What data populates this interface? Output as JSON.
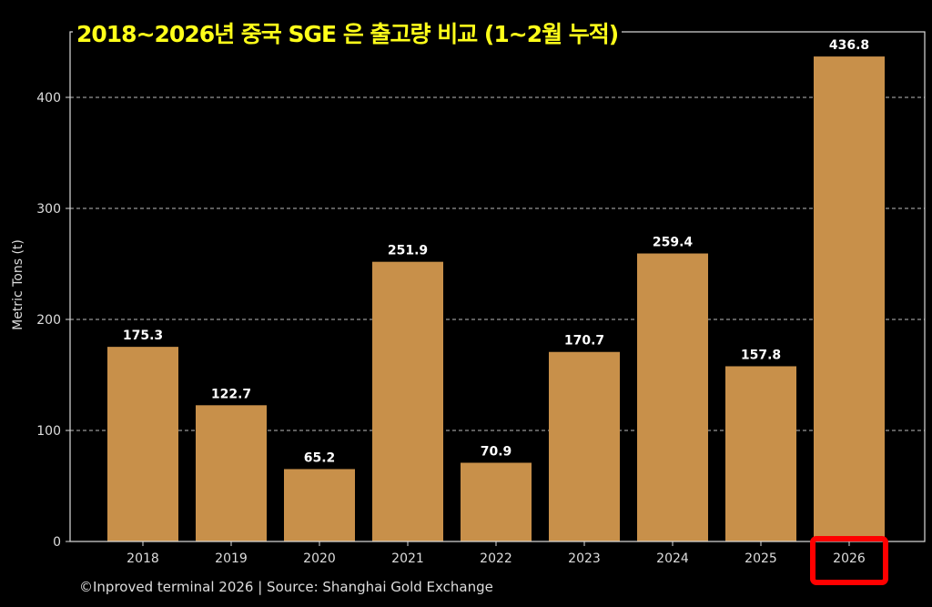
{
  "chart_data": {
    "type": "bar",
    "title": "2018~2026년 중국 SGE 은 출고량 비교 (1~2월 누적)",
    "ylabel": "Metric Tons (t)",
    "xlabel": "",
    "categories": [
      "2018",
      "2019",
      "2020",
      "2021",
      "2022",
      "2023",
      "2024",
      "2025",
      "2026"
    ],
    "values": [
      175.3,
      122.7,
      65.2,
      251.9,
      70.9,
      170.7,
      259.4,
      157.8,
      436.8
    ],
    "data_labels": [
      "175.3",
      "122.7",
      "65.2",
      "251.9",
      "70.9",
      "170.7",
      "259.4",
      "157.8",
      "436.8"
    ],
    "ylim": [
      0,
      459
    ],
    "yticks": [
      0,
      100,
      200,
      300,
      400
    ],
    "grid": "horizontal dashed",
    "bar_color": "#c8904a",
    "background": "#000000",
    "highlight": {
      "category": "2026",
      "color": "#ff0000"
    },
    "footer": "©Inproved terminal 2026 | Source: Shanghai Gold Exchange"
  }
}
